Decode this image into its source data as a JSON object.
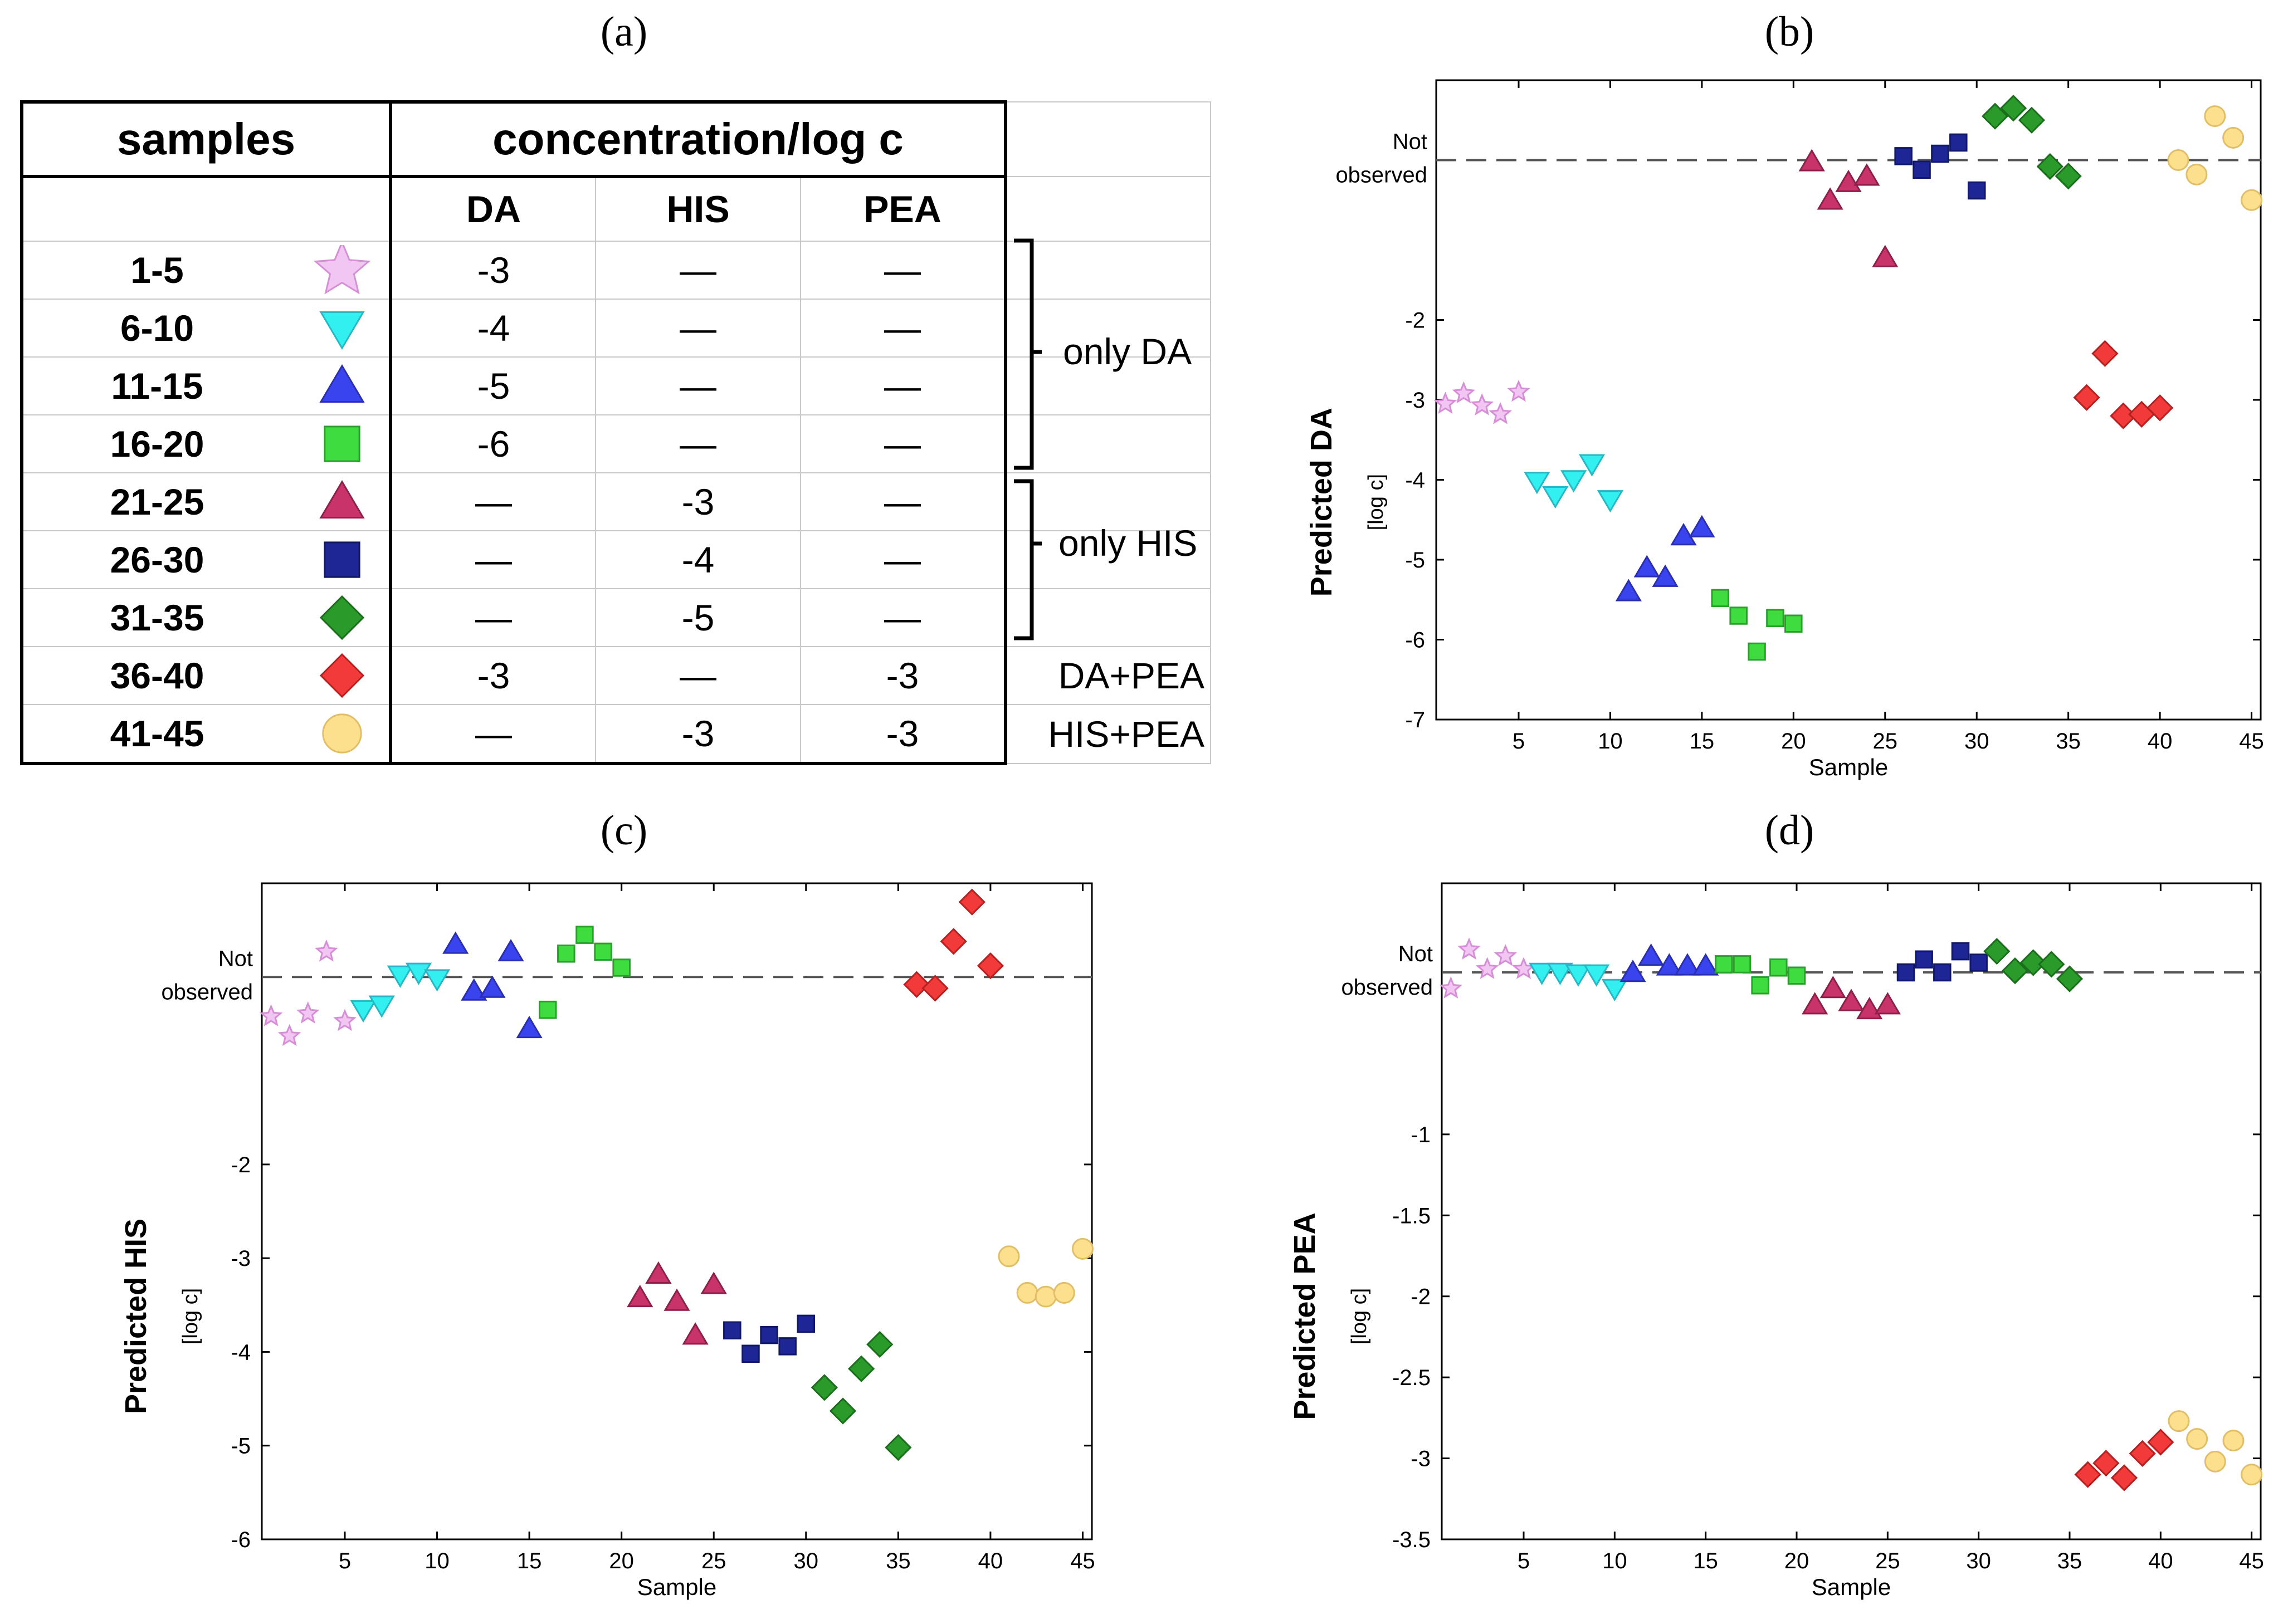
{
  "panels": {
    "a": "(a)",
    "b": "(b)",
    "c": "(c)",
    "d": "(d)"
  },
  "table": {
    "header": {
      "samples": "samples",
      "concentration": "concentration/log c",
      "da": "DA",
      "his": "HIS",
      "pea": "PEA"
    },
    "rows": [
      {
        "samples": "1-5",
        "marker": "star",
        "color": "#f2c6f2",
        "stroke": "#d68fd6",
        "da": "-3",
        "his": "—",
        "pea": "—"
      },
      {
        "samples": "6-10",
        "marker": "tri-down",
        "color": "#33f0f0",
        "stroke": "#2ab6c2",
        "da": "-4",
        "his": "—",
        "pea": "—"
      },
      {
        "samples": "11-15",
        "marker": "tri-up",
        "color": "#3a44ee",
        "stroke": "#2a2fb2",
        "da": "-5",
        "his": "—",
        "pea": "—"
      },
      {
        "samples": "16-20",
        "marker": "square",
        "color": "#3fdc3f",
        "stroke": "#2aa02a",
        "da": "-6",
        "his": "—",
        "pea": "—"
      },
      {
        "samples": "21-25",
        "marker": "tri-up",
        "color": "#c8346a",
        "stroke": "#8e1f48",
        "da": "—",
        "his": "-3",
        "pea": "—"
      },
      {
        "samples": "26-30",
        "marker": "square",
        "color": "#1e2696",
        "stroke": "#121868",
        "da": "—",
        "his": "-4",
        "pea": "—"
      },
      {
        "samples": "31-35",
        "marker": "diamond",
        "color": "#2a9a2a",
        "stroke": "#1b6e1b",
        "da": "—",
        "his": "-5",
        "pea": "—"
      },
      {
        "samples": "36-40",
        "marker": "diamond",
        "color": "#f23a3a",
        "stroke": "#b52020",
        "da": "-3",
        "his": "—",
        "pea": "-3"
      },
      {
        "samples": "41-45",
        "marker": "circle",
        "color": "#fde08e",
        "stroke": "#e0bf68",
        "da": "—",
        "his": "-3",
        "pea": "-3"
      }
    ],
    "notes": {
      "only_da": "only DA",
      "only_his": "only HIS",
      "da_pea": "DA+PEA",
      "his_pea": "HIS+PEA"
    }
  },
  "chart_data": [
    {
      "id": "b",
      "type": "scatter",
      "title": "",
      "ylabel": "Predicted DA",
      "yunit": "[log c]",
      "xlabel": "Sample",
      "not_observed": "Not observed",
      "not_observed_level": 0,
      "xlim": [
        0.5,
        45.5
      ],
      "ylim": [
        -7,
        1
      ],
      "xticks": [
        5,
        10,
        15,
        20,
        25,
        30,
        35,
        40,
        45
      ],
      "yticks": [
        -7,
        -6,
        -5,
        -4,
        -3,
        -2
      ],
      "groups": [
        {
          "samples": "1-5",
          "x": [
            1,
            2,
            3,
            4,
            5
          ],
          "y": [
            -3.05,
            -2.92,
            -3.07,
            -3.18,
            -2.9
          ]
        },
        {
          "samples": "6-10",
          "x": [
            6,
            7,
            8,
            9,
            10
          ],
          "y": [
            -4.02,
            -4.2,
            -4.0,
            -3.8,
            -4.25
          ]
        },
        {
          "samples": "11-15",
          "x": [
            11,
            12,
            13,
            14,
            15
          ],
          "y": [
            -5.4,
            -5.1,
            -5.22,
            -4.7,
            -4.6
          ]
        },
        {
          "samples": "16-20",
          "x": [
            16,
            17,
            18,
            19,
            20
          ],
          "y": [
            -5.48,
            -5.7,
            -6.15,
            -5.73,
            -5.8
          ]
        },
        {
          "samples": "21-25",
          "x": [
            21,
            22,
            23,
            24,
            25
          ],
          "y": [
            -0.02,
            -0.5,
            -0.28,
            -0.2,
            -1.22
          ]
        },
        {
          "samples": "26-30",
          "x": [
            26,
            27,
            28,
            29,
            30
          ],
          "y": [
            0.05,
            -0.12,
            0.08,
            0.22,
            -0.38
          ]
        },
        {
          "samples": "31-35",
          "x": [
            31,
            32,
            33,
            34,
            35
          ],
          "y": [
            0.55,
            0.65,
            0.5,
            -0.08,
            -0.2
          ]
        },
        {
          "samples": "36-40",
          "x": [
            36,
            37,
            38,
            39,
            40
          ],
          "y": [
            -2.97,
            -2.42,
            -3.2,
            -3.18,
            -3.1
          ]
        },
        {
          "samples": "41-45",
          "x": [
            41,
            42,
            43,
            44,
            45
          ],
          "y": [
            0.0,
            -0.18,
            0.55,
            0.28,
            -0.5
          ]
        }
      ]
    },
    {
      "id": "c",
      "type": "scatter",
      "title": "",
      "ylabel": "Predicted HIS",
      "yunit": "[log c]",
      "xlabel": "Sample",
      "not_observed": "Not observed",
      "not_observed_level": 0,
      "xlim": [
        0.5,
        45.5
      ],
      "ylim": [
        -6,
        1
      ],
      "xticks": [
        5,
        10,
        15,
        20,
        25,
        30,
        35,
        40,
        45
      ],
      "yticks": [
        -6,
        -5,
        -4,
        -3,
        -2
      ],
      "groups": [
        {
          "samples": "1-5",
          "x": [
            1,
            2,
            3,
            4,
            5
          ],
          "y": [
            -0.42,
            -0.63,
            -0.39,
            0.27,
            -0.47
          ]
        },
        {
          "samples": "6-10",
          "x": [
            6,
            7,
            8,
            9,
            10
          ],
          "y": [
            -0.35,
            -0.3,
            0.02,
            0.05,
            -0.02
          ]
        },
        {
          "samples": "11-15",
          "x": [
            11,
            12,
            13,
            14,
            15
          ],
          "y": [
            0.35,
            -0.15,
            -0.12,
            0.27,
            -0.55
          ]
        },
        {
          "samples": "16-20",
          "x": [
            16,
            17,
            18,
            19,
            20
          ],
          "y": [
            -0.35,
            0.25,
            0.45,
            0.27,
            0.1
          ]
        },
        {
          "samples": "21-25",
          "x": [
            21,
            22,
            23,
            24,
            25
          ],
          "y": [
            -3.42,
            -3.17,
            -3.46,
            -3.82,
            -3.28
          ]
        },
        {
          "samples": "26-30",
          "x": [
            26,
            27,
            28,
            29,
            30
          ],
          "y": [
            -3.77,
            -4.02,
            -3.82,
            -3.94,
            -3.7
          ]
        },
        {
          "samples": "31-35",
          "x": [
            31,
            32,
            33,
            34,
            35
          ],
          "y": [
            -4.38,
            -4.63,
            -4.18,
            -3.92,
            -5.02
          ]
        },
        {
          "samples": "36-40",
          "x": [
            36,
            37,
            38,
            39,
            40
          ],
          "y": [
            -0.08,
            -0.12,
            0.38,
            0.8,
            0.12
          ]
        },
        {
          "samples": "41-45",
          "x": [
            41,
            42,
            43,
            44,
            45
          ],
          "y": [
            -2.98,
            -3.37,
            -3.41,
            -3.37,
            -2.9
          ]
        }
      ]
    },
    {
      "id": "d",
      "type": "scatter",
      "title": "",
      "ylabel": "Predicted PEA",
      "yunit": "[log c]",
      "xlabel": "Sample",
      "not_observed": "Not observed",
      "not_observed_level": 0,
      "xlim": [
        0.5,
        45.5
      ],
      "ylim": [
        -3.5,
        0.55
      ],
      "xticks": [
        5,
        10,
        15,
        20,
        25,
        30,
        35,
        40,
        45
      ],
      "yticks": [
        -3.5,
        -3,
        -2.5,
        -2,
        -1.5,
        -1
      ],
      "ytick_labels": [
        "-3.5",
        "-3",
        "-2.5",
        "-2",
        "-1.5",
        "-1"
      ],
      "groups": [
        {
          "samples": "1-5",
          "x": [
            1,
            2,
            3,
            4,
            5
          ],
          "y": [
            -0.1,
            0.14,
            0.02,
            0.1,
            0.02
          ]
        },
        {
          "samples": "6-10",
          "x": [
            6,
            7,
            8,
            9,
            10
          ],
          "y": [
            0.0,
            0.0,
            -0.01,
            -0.01,
            -0.1
          ]
        },
        {
          "samples": "11-15",
          "x": [
            11,
            12,
            13,
            14,
            15
          ],
          "y": [
            0.0,
            0.1,
            0.04,
            0.04,
            0.04
          ]
        },
        {
          "samples": "16-20",
          "x": [
            16,
            17,
            18,
            19,
            20
          ],
          "y": [
            0.05,
            0.05,
            -0.08,
            0.03,
            -0.02
          ]
        },
        {
          "samples": "21-25",
          "x": [
            21,
            22,
            23,
            24,
            25
          ],
          "y": [
            -0.2,
            -0.1,
            -0.18,
            -0.23,
            -0.2
          ]
        },
        {
          "samples": "26-30",
          "x": [
            26,
            27,
            28,
            29,
            30
          ],
          "y": [
            0.0,
            0.08,
            0.0,
            0.13,
            0.06
          ]
        },
        {
          "samples": "31-35",
          "x": [
            31,
            32,
            33,
            34,
            35
          ],
          "y": [
            0.13,
            0.01,
            0.06,
            0.05,
            -0.04
          ]
        },
        {
          "samples": "36-40",
          "x": [
            36,
            37,
            38,
            39,
            40
          ],
          "y": [
            -3.1,
            -3.03,
            -3.12,
            -2.97,
            -2.9
          ]
        },
        {
          "samples": "41-45",
          "x": [
            41,
            42,
            43,
            44,
            45
          ],
          "y": [
            -2.77,
            -2.88,
            -3.02,
            -2.89,
            -3.1
          ]
        }
      ]
    }
  ]
}
